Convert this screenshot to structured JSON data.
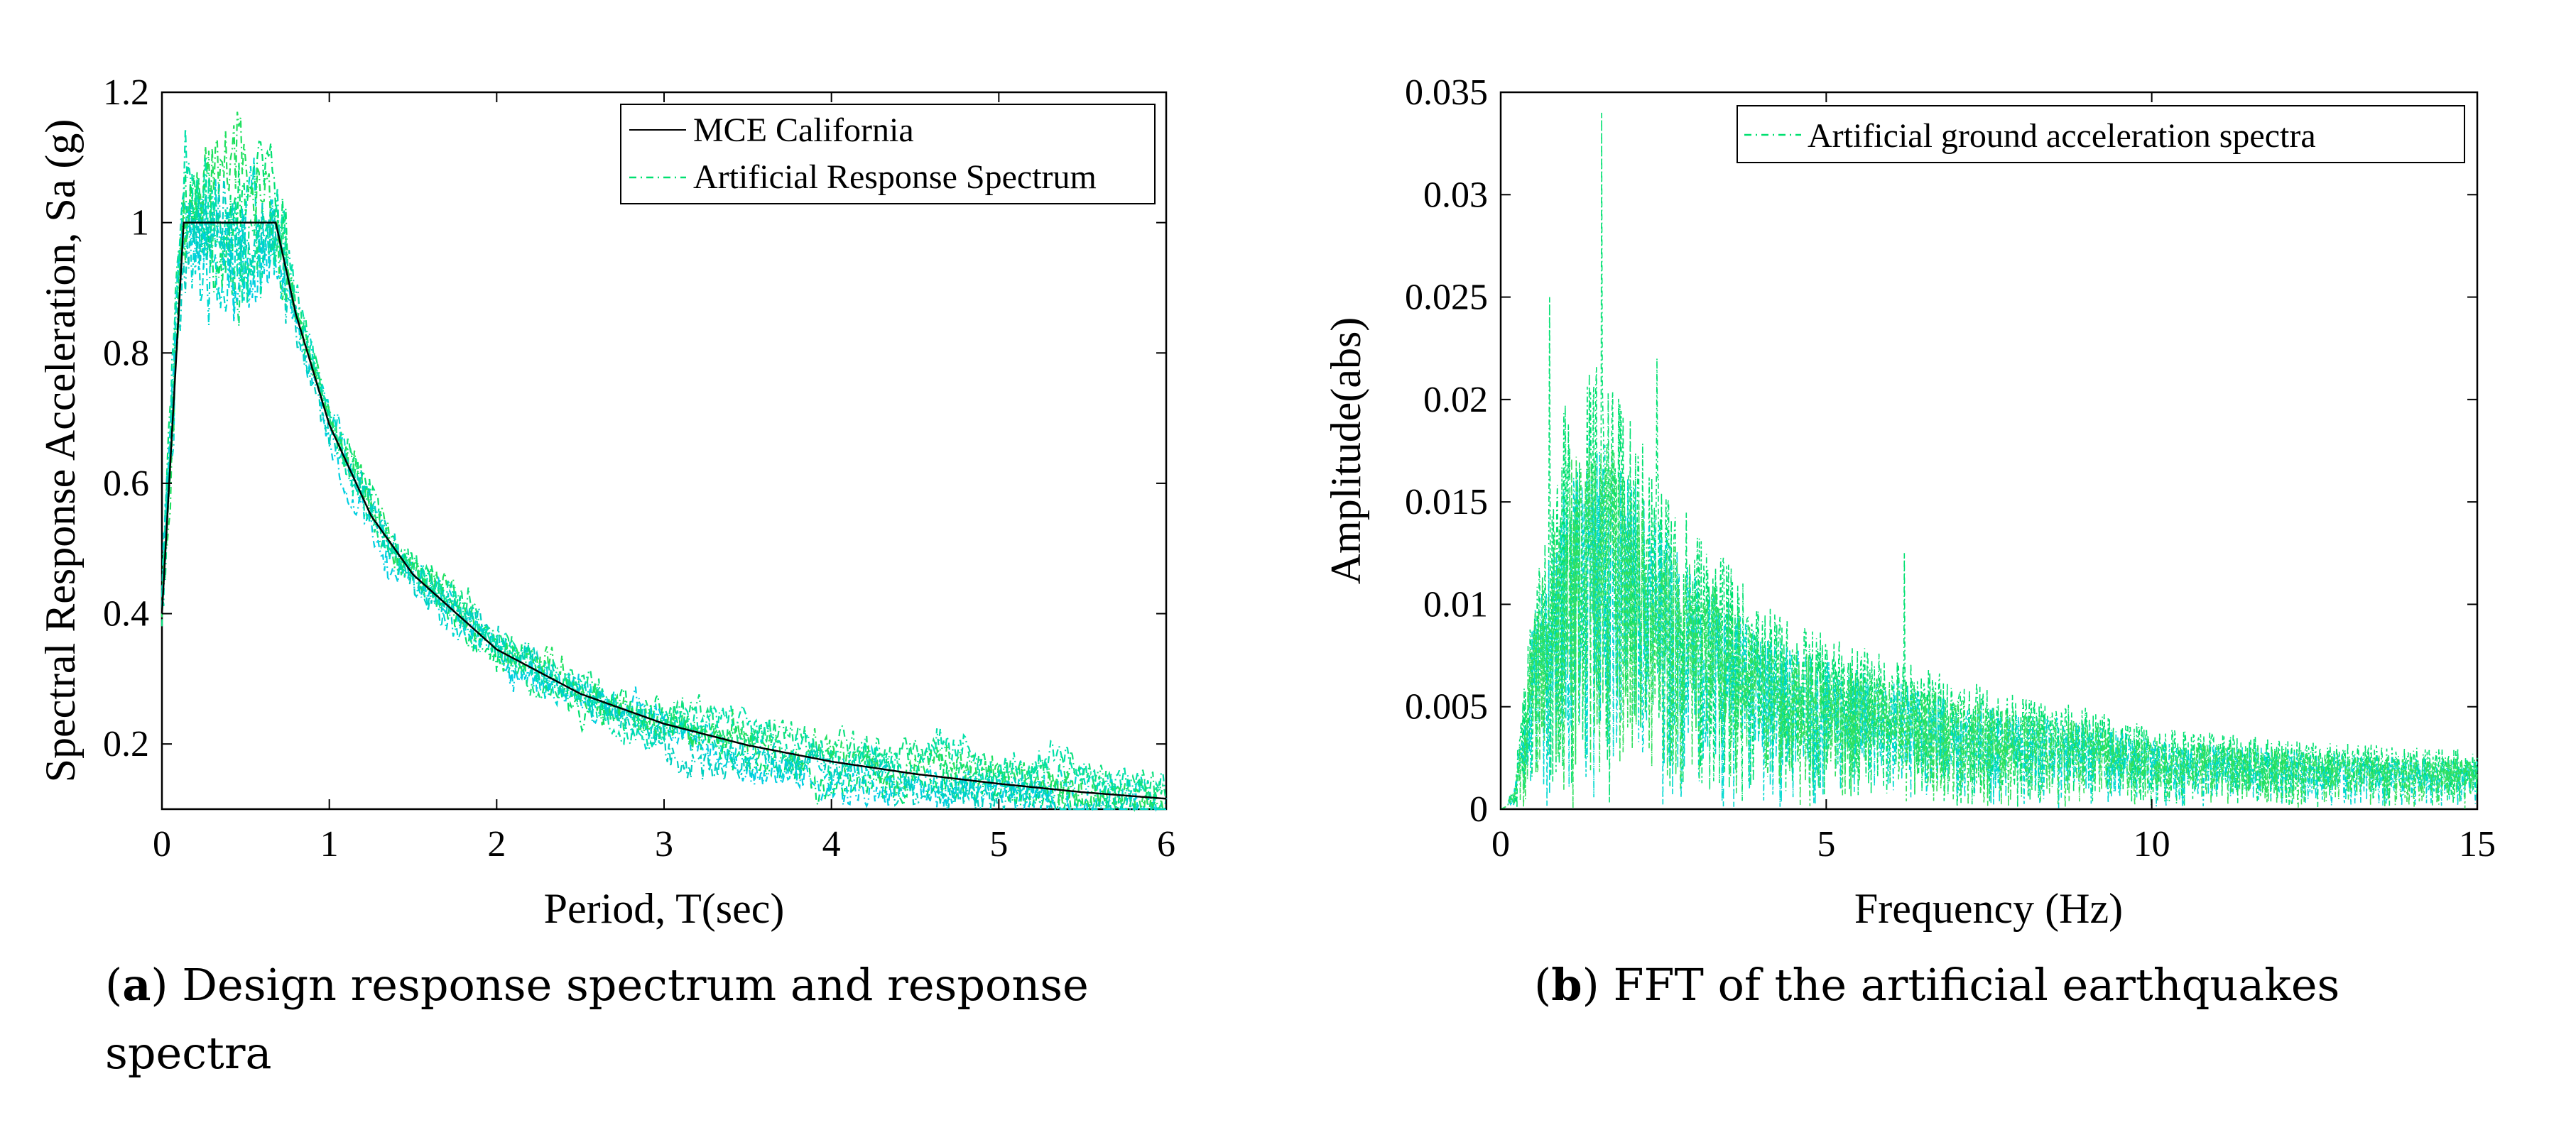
{
  "chart_data": [
    {
      "id": "a",
      "type": "line",
      "xlabel": "Period, T(sec)",
      "ylabel": "Spectral Response Acceleration, Sa (g)",
      "xlim": [
        0,
        6
      ],
      "ylim": [
        0.1,
        1.2
      ],
      "xticks": [
        0,
        1,
        2,
        3,
        4,
        5,
        6
      ],
      "yticks": [
        0.2,
        0.4,
        0.6,
        0.8,
        1,
        1.2
      ],
      "legend_position": "top-right",
      "legend": [
        "MCE California",
        "Artificial Response Spectrum"
      ],
      "series": [
        {
          "name": "MCE California",
          "color": "#000000",
          "style": "solid",
          "x": [
            0,
            0.13,
            0.68,
            0.8,
            1.0,
            1.25,
            1.5,
            2.0,
            2.5,
            3.0,
            3.5,
            4.0,
            4.5,
            5.0,
            5.5,
            6.0
          ],
          "y": [
            0.4,
            1.0,
            1.0,
            0.86,
            0.69,
            0.55,
            0.46,
            0.345,
            0.277,
            0.231,
            0.198,
            0.173,
            0.154,
            0.139,
            0.126,
            0.116
          ]
        },
        {
          "name": "Artificial Response Spectrum",
          "color": "#00e070",
          "style": "dash-dot",
          "count": 7,
          "description": "seven artificial response spectra fluctuating around the MCE California design curve"
        }
      ],
      "caption_label": "a",
      "caption_text": "Design response spectrum and response spectra"
    },
    {
      "id": "b",
      "type": "line",
      "xlabel": "Frequency (Hz)",
      "ylabel": "Amplitude(abs)",
      "xlim": [
        0,
        15
      ],
      "ylim": [
        0,
        0.035
      ],
      "xticks": [
        0,
        5,
        10,
        15
      ],
      "yticks": [
        0,
        0.005,
        0.01,
        0.015,
        0.02,
        0.025,
        0.03,
        0.035
      ],
      "legend_position": "top-right",
      "legend": [
        "Artificial ground acceleration spectra"
      ],
      "series": [
        {
          "name": "Artificial ground acceleration spectra",
          "color": "#00e070",
          "style": "dash-dot",
          "envelope_x": [
            0,
            0.2,
            0.5,
            1.0,
            1.5,
            2.0,
            3.0,
            4.0,
            5.0,
            6.0,
            7.0,
            8.0,
            9.0,
            10.0,
            12.0,
            14.0,
            15.0
          ],
          "envelope_y": [
            0,
            0.001,
            0.011,
            0.02,
            0.022,
            0.019,
            0.014,
            0.01,
            0.0085,
            0.0075,
            0.0065,
            0.0055,
            0.005,
            0.004,
            0.0035,
            0.003,
            0.003
          ],
          "peaks": [
            {
              "x": 1.55,
              "y": 0.034
            },
            {
              "x": 0.75,
              "y": 0.025
            },
            {
              "x": 2.4,
              "y": 0.022
            },
            {
              "x": 6.2,
              "y": 0.0125
            }
          ]
        }
      ],
      "caption_label": "b",
      "caption_text": "FFT of the artificial earthquakes"
    }
  ],
  "captions": {
    "a": {
      "label": "a",
      "line1": "Design response spectrum and response",
      "line2": "spectra"
    },
    "b": {
      "label": "b",
      "text": "FFT of the artificial earthquakes"
    }
  },
  "colors": {
    "green": "#00e070",
    "cyan": "#00d8d0",
    "black": "#000000"
  }
}
